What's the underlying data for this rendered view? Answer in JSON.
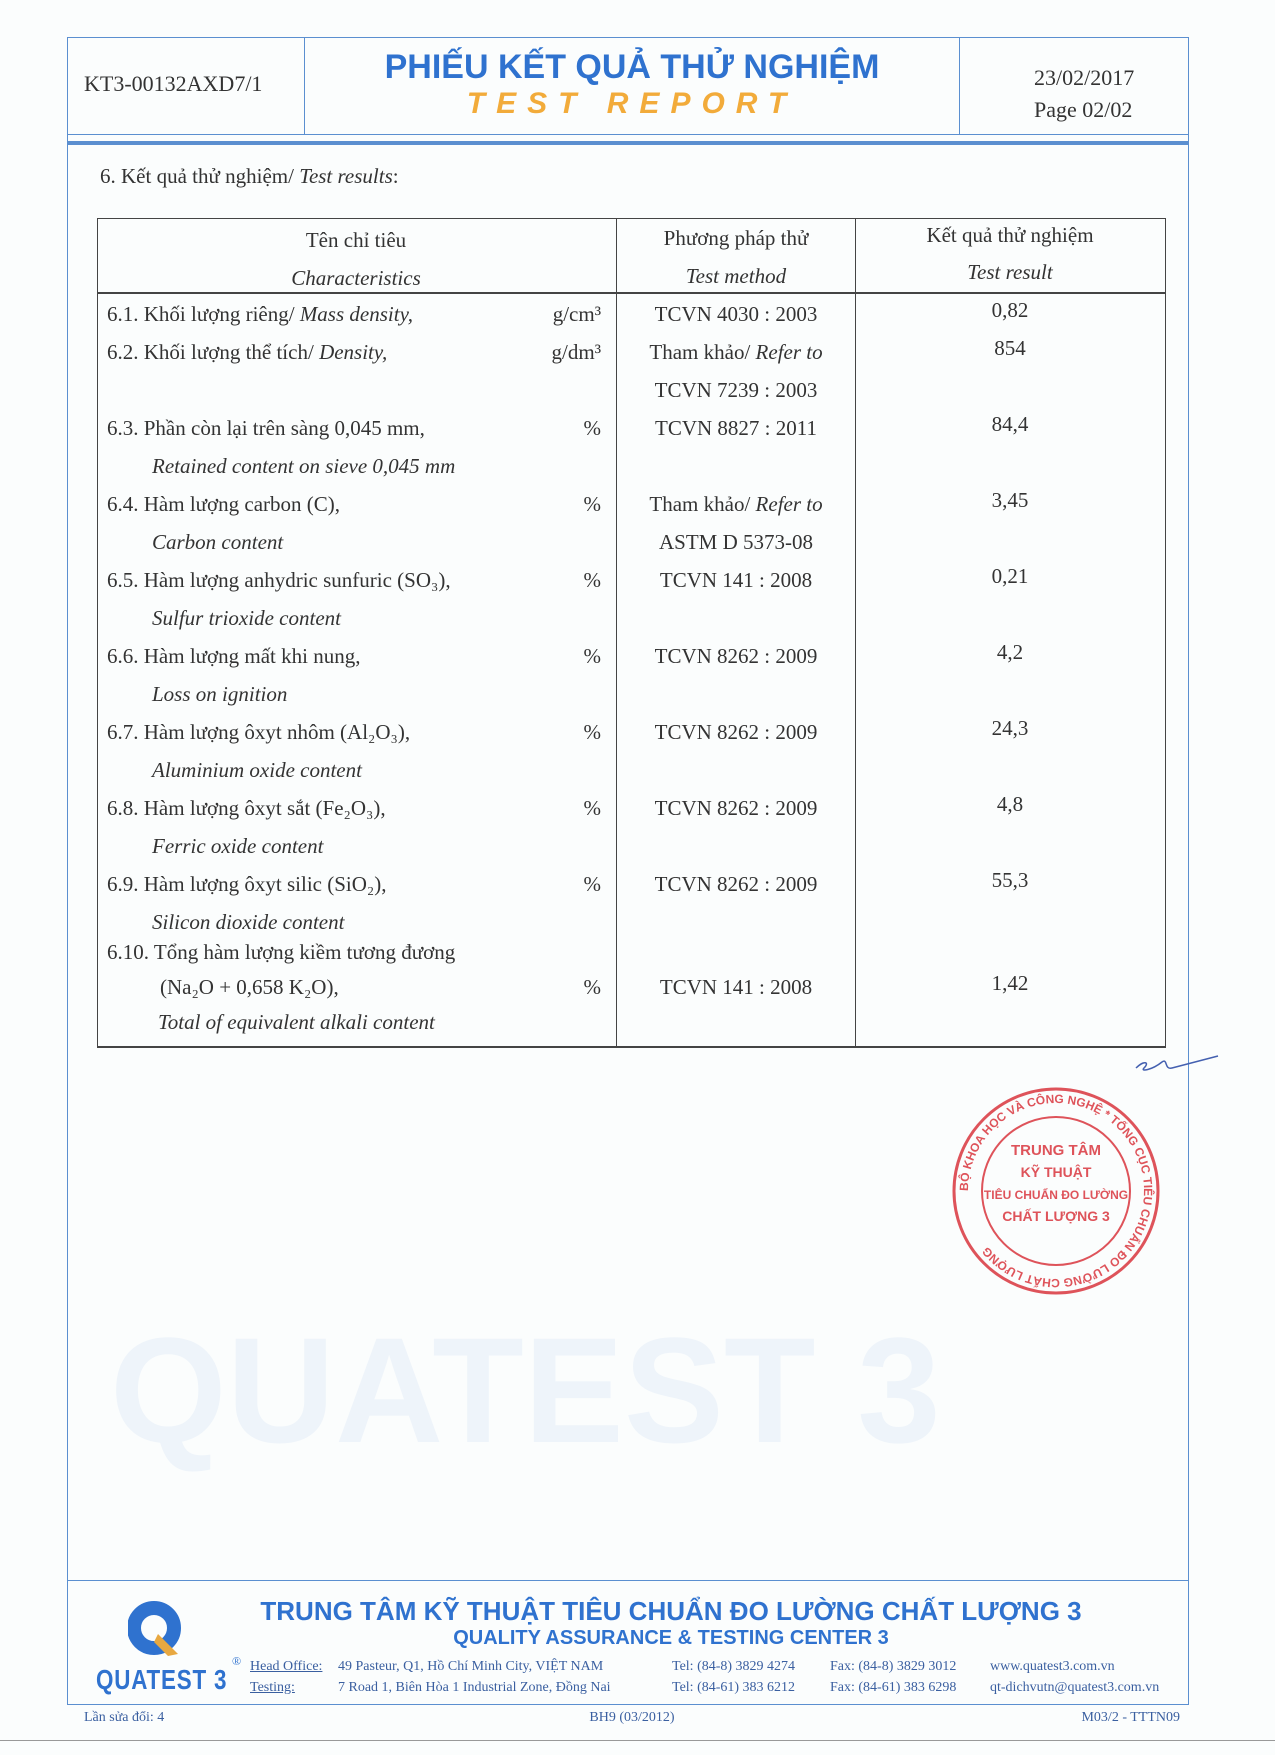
{
  "header": {
    "doc_id": "KT3-00132AXD7/1",
    "title_vn": "PHIẾU KẾT QUẢ THỬ NGHIỆM",
    "title_en": "TEST REPORT",
    "date": "23/02/2017",
    "page": "Page 02/02"
  },
  "section_title": {
    "vn": "6. Kết quả thử nghiệm/ ",
    "en": "Test results",
    "colon": ":"
  },
  "table": {
    "headers": [
      {
        "vn": "Tên chỉ tiêu",
        "en": "Characteristics"
      },
      {
        "vn": "Phương pháp thử",
        "en": "Test method"
      },
      {
        "vn": "Kết quả thử nghiệm",
        "en": "Test result"
      }
    ],
    "rows": [
      {
        "lines": [
          "6.1. Khối lượng riêng/ Mass density,"
        ],
        "unit": "g/cm³",
        "method": [
          "TCVN 4030 : 2003"
        ],
        "result": "0,82"
      },
      {
        "lines": [
          "6.2. Khối lượng thể tích/ Density,"
        ],
        "unit": "g/dm³",
        "method": [
          "Tham khảo/ Refer to",
          "TCVN 7239 : 2003"
        ],
        "result": "854"
      },
      {
        "lines": [
          "6.3. Phần còn lại trên sàng 0,045 mm,",
          "Retained content on sieve 0,045 mm"
        ],
        "unit": "%",
        "method": [
          "TCVN 8827 : 2011"
        ],
        "result": "84,4"
      },
      {
        "lines": [
          "6.4. Hàm lượng carbon (C),",
          "Carbon content"
        ],
        "unit": "%",
        "method": [
          "Tham khảo/ Refer to",
          "ASTM D 5373-08"
        ],
        "result": "3,45"
      },
      {
        "lines": [
          "6.5. Hàm lượng anhydric sunfuric (SO₃),",
          "Sulfur trioxide content"
        ],
        "unit": "%",
        "method": [
          "TCVN 141 : 2008"
        ],
        "result": "0,21"
      },
      {
        "lines": [
          "6.6. Hàm lượng mất khi nung,",
          "Loss on ignition"
        ],
        "unit": "%",
        "method": [
          "TCVN 8262 : 2009"
        ],
        "result": "4,2"
      },
      {
        "lines": [
          "6.7. Hàm lượng ôxyt nhôm (Al₂O₃),",
          "Aluminium oxide content"
        ],
        "unit": "%",
        "method": [
          "TCVN 8262 : 2009"
        ],
        "result": "24,3"
      },
      {
        "lines": [
          "6.8. Hàm lượng ôxyt sắt (Fe₂O₃),",
          "Ferric oxide content"
        ],
        "unit": "%",
        "method": [
          "TCVN 8262 : 2009"
        ],
        "result": "4,8"
      },
      {
        "lines": [
          "6.9. Hàm lượng ôxyt silic (SiO₂),",
          "Silicon dioxide content"
        ],
        "unit": "%",
        "method": [
          "TCVN 8262 : 2009"
        ],
        "result": "55,3"
      },
      {
        "lines": [
          "6.10. Tổng hàm lượng kiềm tương đương",
          "(Na₂O + 0,658 K₂O),",
          "Total of equivalent alkali content"
        ],
        "unit": "%",
        "method": [
          "TCVN 141 : 2008"
        ],
        "result": "1,42"
      }
    ]
  },
  "stamp": {
    "ring_text": "BỘ KHOA HỌC VÀ CÔNG NGHỆ * TỔNG CỤC TIÊU CHUẨN ĐO LƯỜNG CHẤT LƯỢNG",
    "center_lines": [
      "TRUNG TÂM",
      "KỸ THUẬT",
      "TIÊU CHUẨN ĐO LƯỜNG",
      "CHẤT LƯỢNG 3"
    ],
    "color": "#d9363e"
  },
  "footer": {
    "org_vn": "TRUNG TÂM KỸ THUẬT TIÊU CHUẨN ĐO LƯỜNG CHẤT LƯỢNG 3",
    "org_en": "QUALITY ASSURANCE & TESTING CENTER 3",
    "logo_text": "QUATEST 3",
    "head_office_label": "Head Office:",
    "head_office_addr": "49 Pasteur, Q1, Hồ Chí Minh City, VIỆT NAM",
    "head_office_tel": "Tel: (84-8)  3829 4274",
    "head_office_fax": "Fax: (84-8)  3829 3012",
    "website": "www.quatest3.com.vn",
    "testing_label": "Testing:",
    "testing_addr": "7 Road 1, Biên Hòa 1 Industrial Zone, Đồng Nai",
    "testing_tel": "Tel: (84-61)  383 6212",
    "testing_fax": "Fax: (84-61)  383 6298",
    "email": "qt-dichvutn@quatest3.com.vn",
    "revision": "Lần sửa đổi: 4",
    "form_code": "BH9 (03/2012)",
    "doc_code": "M03/2 - TTTN09"
  },
  "colors": {
    "brand_blue": "#2f72cf",
    "brand_orange": "#f2ab3a",
    "frame_blue": "#5b8fd0"
  }
}
